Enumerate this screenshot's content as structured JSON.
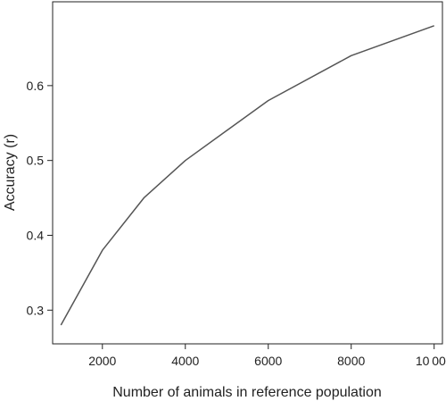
{
  "chart_data": {
    "type": "line",
    "title": "",
    "xlabel": "Number of animals in reference population",
    "ylabel": "Accuracy (r)",
    "xlim": [
      800,
      10200
    ],
    "ylim": [
      0.255,
      0.712
    ],
    "grid": false,
    "x_ticks": [
      2000,
      4000,
      6000,
      8000,
      10000
    ],
    "x_tick_labels": [
      "2000",
      "4000",
      "6000",
      "8000",
      "10 000"
    ],
    "y_ticks": [
      0.3,
      0.4,
      0.5,
      0.6
    ],
    "y_tick_labels": [
      "0.3",
      "0.4",
      "0.5",
      "0.6"
    ],
    "series": [
      {
        "color": "#555555",
        "x": [
          1000,
          2000,
          3000,
          4000,
          6000,
          8000,
          10000
        ],
        "y": [
          0.28,
          0.38,
          0.45,
          0.5,
          0.58,
          0.64,
          0.68
        ]
      }
    ]
  }
}
